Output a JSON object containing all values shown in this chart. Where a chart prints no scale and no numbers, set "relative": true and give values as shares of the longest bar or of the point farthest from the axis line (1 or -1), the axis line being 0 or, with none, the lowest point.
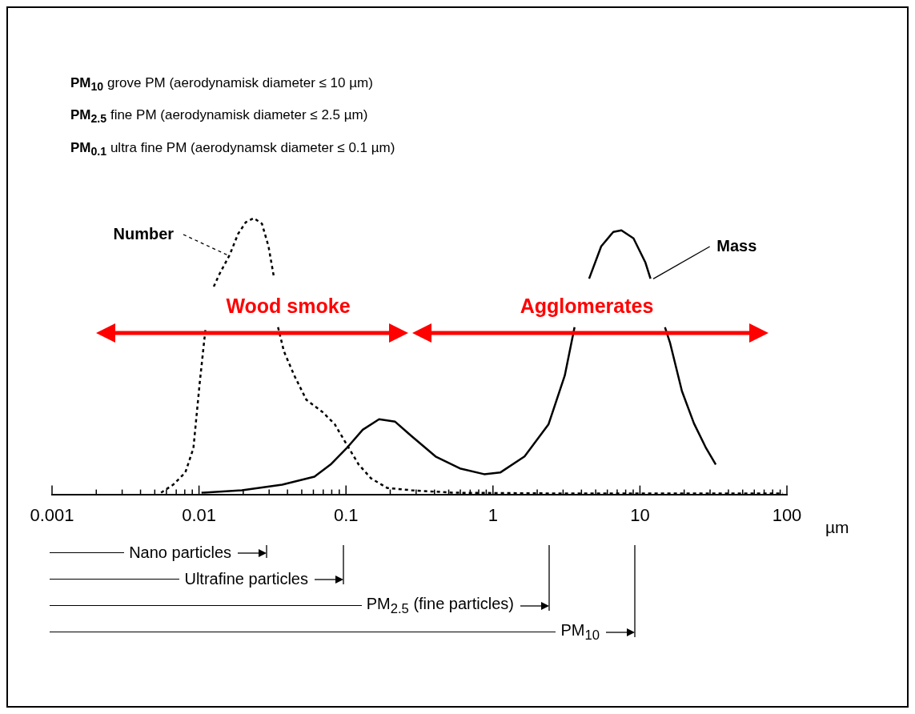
{
  "chart_data": {
    "type": "line",
    "relative": true,
    "log": "x",
    "xlabel": "µm",
    "marker": "none",
    "xlim": [
      0.001,
      100
    ],
    "xticks": [
      0.001,
      {
        "value": 0.002,
        "label": null
      },
      {
        "value": 0.003,
        "label": null
      },
      {
        "value": 0.004,
        "label": null
      },
      {
        "value": 0.005,
        "label": null
      },
      {
        "value": 0.006,
        "label": null
      },
      {
        "value": 0.007,
        "label": null
      },
      {
        "value": 0.008,
        "label": null
      },
      {
        "value": 0.009,
        "label": null
      },
      0.01,
      {
        "value": 0.02,
        "label": null
      },
      {
        "value": 0.03,
        "label": null
      },
      {
        "value": 0.04,
        "label": null
      },
      {
        "value": 0.05,
        "label": null
      },
      {
        "value": 0.06,
        "label": null
      },
      {
        "value": 0.07,
        "label": null
      },
      {
        "value": 0.08,
        "label": null
      },
      {
        "value": 0.09,
        "label": null
      },
      0.1,
      {
        "value": 0.2,
        "label": null
      },
      {
        "value": 0.3,
        "label": null
      },
      {
        "value": 0.4,
        "label": null
      },
      {
        "value": 0.5,
        "label": null
      },
      {
        "value": 0.6,
        "label": null
      },
      {
        "value": 0.7,
        "label": null
      },
      {
        "value": 0.8,
        "label": null
      },
      {
        "value": 0.9,
        "label": null
      },
      1,
      {
        "value": 2,
        "label": null
      },
      {
        "value": 3,
        "label": null
      },
      {
        "value": 4,
        "label": null
      },
      {
        "value": 5,
        "label": null
      },
      {
        "value": 6,
        "label": null
      },
      {
        "value": 7,
        "label": null
      },
      {
        "value": 8,
        "label": null
      },
      {
        "value": 9,
        "label": null
      },
      10,
      {
        "value": 20,
        "label": null
      },
      {
        "value": 30,
        "label": null
      },
      {
        "value": 40,
        "label": null
      },
      {
        "value": 50,
        "label": null
      },
      {
        "value": 60,
        "label": null
      },
      {
        "value": 70,
        "label": null
      },
      {
        "value": 80,
        "label": null
      },
      {
        "value": 90,
        "label": null
      },
      100
    ],
    "series": [
      {
        "name": "Number",
        "color": "#000000",
        "line_style": "dotted",
        "x": [
          0.00552,
          0.00667,
          0.00807,
          0.00916,
          0.0101,
          0.0111,
          0.0118,
          0.0126,
          0.0137,
          0.0162,
          0.0184,
          0.0208,
          0.0236,
          0.0268,
          0.0297,
          0.0324,
          0.0335,
          0.0345,
          0.0378,
          0.0445,
          0.0538,
          0.0693,
          0.0838,
          0.101,
          0.122,
          0.148,
          0.191,
          0.279,
          0.525,
          3.08,
          94
        ],
        "values": [
          0.006,
          0.035,
          0.079,
          0.167,
          0.401,
          0.605,
          null,
          0.752,
          0.795,
          0.868,
          0.942,
          0.985,
          1,
          0.98,
          0.898,
          0.784,
          null,
          0.605,
          0.518,
          0.43,
          0.342,
          0.298,
          0.254,
          0.181,
          0.108,
          0.058,
          0.023,
          0.015,
          0.006,
          0.003,
          0.003
        ]
      },
      {
        "name": "Mass",
        "color": "#000000",
        "line_style": "solid",
        "x": [
          0.0104,
          0.0196,
          0.0368,
          0.061,
          0.0786,
          0.101,
          0.13,
          0.168,
          0.216,
          0.279,
          0.407,
          0.596,
          0.871,
          1.12,
          1.64,
          2.39,
          3.08,
          3.59,
          4.0,
          4.51,
          5.45,
          6.59,
          7.48,
          9.04,
          10.9,
          11.8,
          13.2,
          14.8,
          16,
          19.3,
          23.3,
          28.2,
          32.8
        ],
        "values": [
          0.006,
          0.015,
          0.035,
          0.064,
          0.108,
          0.167,
          0.234,
          0.272,
          0.263,
          0.211,
          0.137,
          0.094,
          0.073,
          0.079,
          0.137,
          0.254,
          0.43,
          0.605,
          null,
          0.781,
          0.898,
          0.95,
          0.956,
          0.927,
          0.839,
          0.781,
          null,
          0.605,
          0.55,
          0.374,
          0.257,
          0.167,
          0.108
        ]
      }
    ],
    "annotations": [
      "PM$_{10}$ grove PM (aerodynamisk diameter ≤ 10 µm)",
      "PM$_{2.5}$ fine PM (aerodynamisk diameter ≤ 2.5 µm)",
      "PM$_{0.1}$ ultra fine PM (aerodynamsk diameter ≤ 0.1 µm)",
      "Wood smoke",
      "Agglomerates",
      "Nano particles",
      "Ultrafine particles",
      "PM$_{2.5}$ (fine particles)",
      "PM$_{10}$"
    ]
  }
}
